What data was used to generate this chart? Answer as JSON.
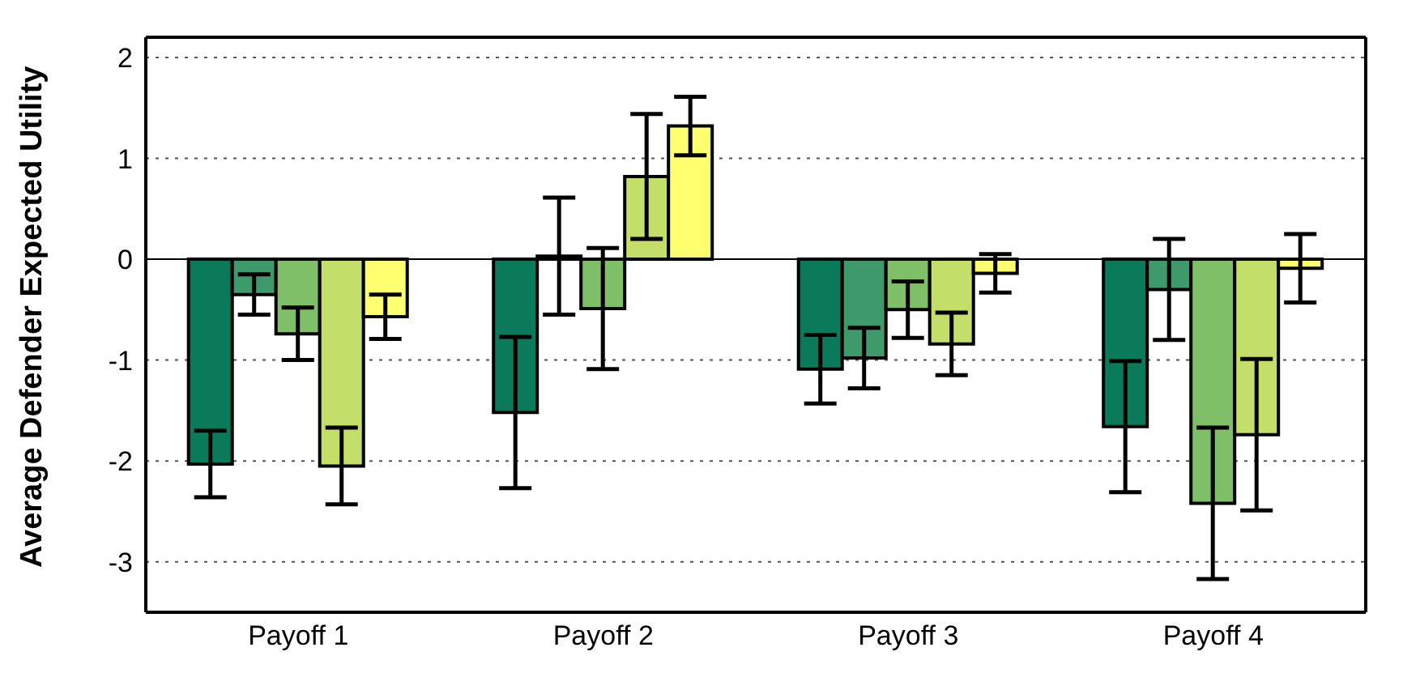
{
  "chart_data": {
    "type": "bar",
    "ylabel": "Average Defender Expected Utility",
    "categories": [
      "Payoff 1",
      "Payoff 2",
      "Payoff 3",
      "Payoff 4"
    ],
    "series": [
      {
        "color": "#0b7a5a",
        "values": [
          -2.03,
          -1.52,
          -1.09,
          -1.66
        ],
        "errors": [
          0.33,
          0.75,
          0.34,
          0.65
        ]
      },
      {
        "color": "#3e9a6a",
        "values": [
          -0.35,
          0.03,
          -0.98,
          -0.3
        ],
        "errors": [
          0.2,
          0.58,
          0.3,
          0.5
        ]
      },
      {
        "color": "#7fbf67",
        "values": [
          -0.74,
          -0.49,
          -0.5,
          -2.42
        ],
        "errors": [
          0.26,
          0.6,
          0.28,
          0.75
        ]
      },
      {
        "color": "#c3df6a",
        "values": [
          -2.05,
          0.82,
          -0.84,
          -1.74
        ],
        "errors": [
          0.38,
          0.62,
          0.31,
          0.75
        ]
      },
      {
        "color": "#ffff70",
        "values": [
          -0.57,
          1.32,
          -0.14,
          -0.09
        ],
        "errors": [
          0.22,
          0.29,
          0.19,
          0.34
        ]
      }
    ],
    "ylim": [
      -3.5,
      2.2
    ],
    "yticks": [
      -3,
      -2,
      -1,
      0,
      1,
      2
    ],
    "grid": "y",
    "ref_lines": [
      {
        "axis": "y",
        "value": 0,
        "color": "#000000",
        "line_style": "solid"
      }
    ]
  }
}
